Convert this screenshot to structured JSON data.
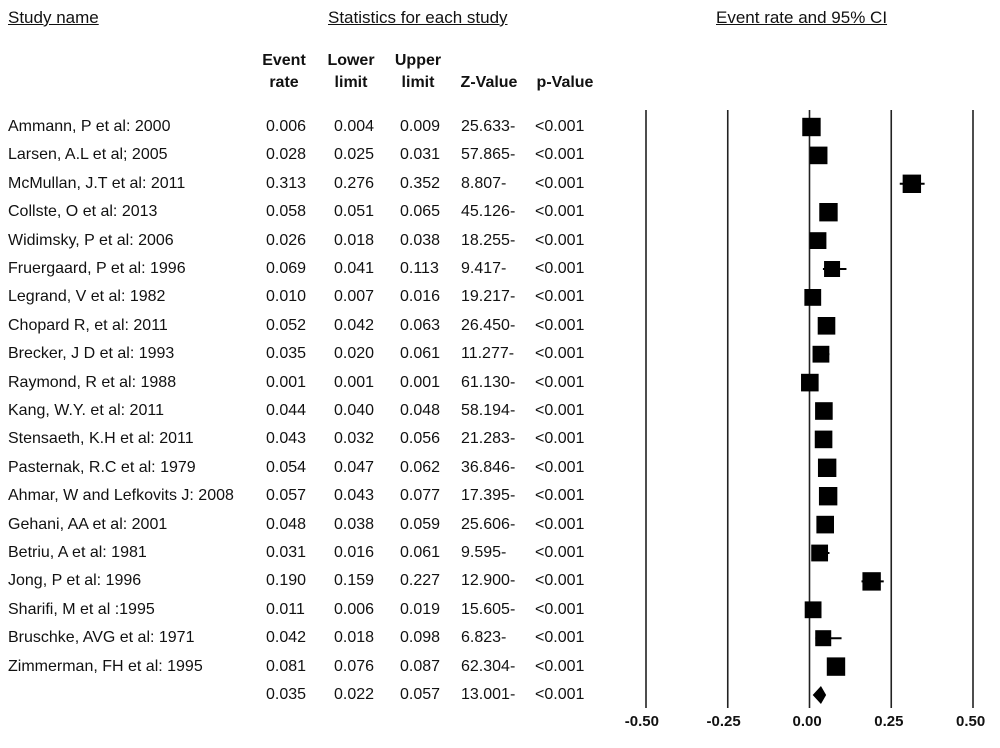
{
  "headers": {
    "study_name": "Study name",
    "statistics": "Statistics for each study",
    "event_rate_ci": "Event rate and 95% CI"
  },
  "columns": {
    "event_rate": [
      "Event",
      "rate"
    ],
    "lower_limit": [
      "Lower",
      "limit"
    ],
    "upper_limit": [
      "Upper",
      "limit"
    ],
    "z_value": "Z-Value",
    "p_value": "p-Value"
  },
  "rows": [
    {
      "name": "Ammann, P  et al: 2000",
      "rate": "0.006",
      "lower": "0.004",
      "upper": "0.009",
      "z": "25.633-",
      "p": "<0.001"
    },
    {
      "name": "Larsen, A.L et al; 2005",
      "rate": "0.028",
      "lower": "0.025",
      "upper": "0.031",
      "z": "57.865-",
      "p": "<0.001"
    },
    {
      "name": "McMullan, J.T et al: 2011",
      "rate": "0.313",
      "lower": "0.276",
      "upper": "0.352",
      "z": "8.807-",
      "p": "<0.001"
    },
    {
      "name": "Collste, O et al: 2013",
      "rate": "0.058",
      "lower": "0.051",
      "upper": "0.065",
      "z": "45.126-",
      "p": "<0.001"
    },
    {
      "name": "Widimsky, P et al: 2006",
      "rate": "0.026",
      "lower": "0.018",
      "upper": "0.038",
      "z": "18.255-",
      "p": "<0.001"
    },
    {
      "name": "Fruergaard, P et al: 1996",
      "rate": "0.069",
      "lower": "0.041",
      "upper": "0.113",
      "z": "9.417-",
      "p": "<0.001"
    },
    {
      "name": "Legrand, V et al: 1982",
      "rate": "0.010",
      "lower": "0.007",
      "upper": "0.016",
      "z": "19.217-",
      "p": "<0.001"
    },
    {
      "name": "Chopard R, et al: 2011",
      "rate": "0.052",
      "lower": "0.042",
      "upper": "0.063",
      "z": "26.450-",
      "p": "<0.001"
    },
    {
      "name": "Brecker, J D et al: 1993",
      "rate": "0.035",
      "lower": "0.020",
      "upper": "0.061",
      "z": "11.277-",
      "p": "<0.001"
    },
    {
      "name": "Raymond, R et al: 1988",
      "rate": "0.001",
      "lower": "0.001",
      "upper": "0.001",
      "z": "61.130-",
      "p": "<0.001"
    },
    {
      "name": " Kang, W.Y. et al: 2011",
      "rate": "0.044",
      "lower": "0.040",
      "upper": "0.048",
      "z": "58.194-",
      "p": "<0.001"
    },
    {
      "name": "Stensaeth, K.H et al: 2011",
      "rate": "0.043",
      "lower": "0.032",
      "upper": "0.056",
      "z": "21.283-",
      "p": "<0.001"
    },
    {
      "name": "Pasternak, R.C et al: 1979",
      "rate": "0.054",
      "lower": "0.047",
      "upper": "0.062",
      "z": "36.846-",
      "p": "<0.001"
    },
    {
      "name": "Ahmar, W and Lefkovits J: 2008",
      "rate": "0.057",
      "lower": "0.043",
      "upper": "0.077",
      "z": "17.395-",
      "p": "<0.001"
    },
    {
      "name": "Gehani, AA et al: 2001",
      "rate": "0.048",
      "lower": "0.038",
      "upper": "0.059",
      "z": "25.606-",
      "p": "<0.001"
    },
    {
      "name": "Betriu, A et al: 1981",
      "rate": "0.031",
      "lower": "0.016",
      "upper": "0.061",
      "z": "9.595-",
      "p": "<0.001"
    },
    {
      "name": "Jong, P et al: 1996",
      "rate": "0.190",
      "lower": "0.159",
      "upper": "0.227",
      "z": "12.900-",
      "p": "<0.001"
    },
    {
      "name": "Sharifi, M et al :1995",
      "rate": "0.011",
      "lower": "0.006",
      "upper": "0.019",
      "z": "15.605-",
      "p": "<0.001"
    },
    {
      "name": "Bruschke, AVG et al: 1971",
      "rate": "0.042",
      "lower": "0.018",
      "upper": "0.098",
      "z": "6.823-",
      "p": "<0.001"
    },
    {
      "name": "Zimmerman, FH et al: 1995",
      "rate": "0.081",
      "lower": "0.076",
      "upper": "0.087",
      "z": "62.304-",
      "p": "<0.001"
    }
  ],
  "summary": {
    "rate": "0.035",
    "lower": "0.022",
    "upper": "0.057",
    "z": "13.001-",
    "p": "<0.001"
  },
  "chart_data": {
    "type": "forest",
    "xlabel": "",
    "x_ticks": [
      "-0.50",
      "-0.25",
      "0.00",
      "0.25",
      "0.50"
    ],
    "xlim": [
      -0.5,
      0.5
    ],
    "studies": [
      {
        "name": "Ammann, P  et al: 2000",
        "estimate": 0.006,
        "lower": 0.004,
        "upper": 0.009,
        "weight": 0.9
      },
      {
        "name": "Larsen, A.L et al; 2005",
        "estimate": 0.028,
        "lower": 0.025,
        "upper": 0.031,
        "weight": 0.85
      },
      {
        "name": "McMullan, J.T et al: 2011",
        "estimate": 0.313,
        "lower": 0.276,
        "upper": 0.352,
        "weight": 0.9
      },
      {
        "name": "Collste, O et al: 2013",
        "estimate": 0.058,
        "lower": 0.051,
        "upper": 0.065,
        "weight": 0.9
      },
      {
        "name": "Widimsky, P et al: 2006",
        "estimate": 0.026,
        "lower": 0.018,
        "upper": 0.038,
        "weight": 0.8
      },
      {
        "name": "Fruergaard, P et al: 1996",
        "estimate": 0.069,
        "lower": 0.041,
        "upper": 0.113,
        "weight": 0.75
      },
      {
        "name": "Legrand, V et al: 1982",
        "estimate": 0.01,
        "lower": 0.007,
        "upper": 0.016,
        "weight": 0.8
      },
      {
        "name": "Chopard R, et al: 2011",
        "estimate": 0.052,
        "lower": 0.042,
        "upper": 0.063,
        "weight": 0.85
      },
      {
        "name": "Brecker, J D et al: 1993",
        "estimate": 0.035,
        "lower": 0.02,
        "upper": 0.061,
        "weight": 0.8
      },
      {
        "name": "Raymond, R et al: 1988",
        "estimate": 0.001,
        "lower": 0.001,
        "upper": 0.001,
        "weight": 0.85
      },
      {
        "name": " Kang, W.Y. et al: 2011",
        "estimate": 0.044,
        "lower": 0.04,
        "upper": 0.048,
        "weight": 0.85
      },
      {
        "name": "Stensaeth, K.H et al: 2011",
        "estimate": 0.043,
        "lower": 0.032,
        "upper": 0.056,
        "weight": 0.85
      },
      {
        "name": "Pasternak, R.C et al: 1979",
        "estimate": 0.054,
        "lower": 0.047,
        "upper": 0.062,
        "weight": 0.9
      },
      {
        "name": "Ahmar, W and Lefkovits J: 2008",
        "estimate": 0.057,
        "lower": 0.043,
        "upper": 0.077,
        "weight": 0.9
      },
      {
        "name": "Gehani, AA et al: 2001",
        "estimate": 0.048,
        "lower": 0.038,
        "upper": 0.059,
        "weight": 0.85
      },
      {
        "name": "Betriu, A et al: 1981",
        "estimate": 0.031,
        "lower": 0.016,
        "upper": 0.061,
        "weight": 0.8
      },
      {
        "name": "Jong, P et al: 1996",
        "estimate": 0.19,
        "lower": 0.159,
        "upper": 0.227,
        "weight": 0.9
      },
      {
        "name": "Sharifi, M et al :1995",
        "estimate": 0.011,
        "lower": 0.006,
        "upper": 0.019,
        "weight": 0.8
      },
      {
        "name": "Bruschke, AVG et al: 1971",
        "estimate": 0.042,
        "lower": 0.018,
        "upper": 0.098,
        "weight": 0.75
      },
      {
        "name": "Zimmerman, FH et al: 1995",
        "estimate": 0.081,
        "lower": 0.076,
        "upper": 0.087,
        "weight": 0.9
      }
    ],
    "summary": {
      "estimate": 0.035,
      "lower": 0.022,
      "upper": 0.057
    }
  }
}
